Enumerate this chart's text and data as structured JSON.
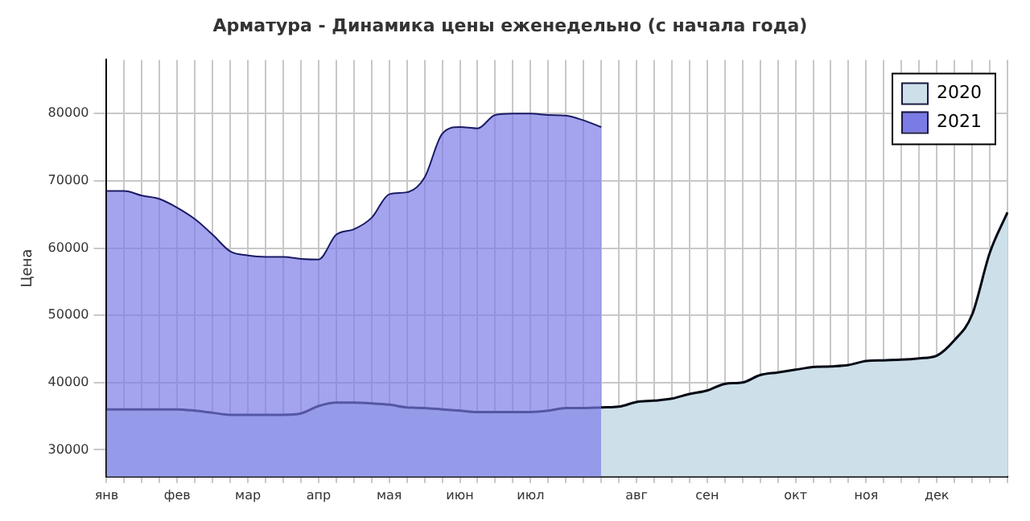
{
  "chart_data": {
    "type": "area",
    "title": "Арматура - Динамика цены еженедельно (с начала года)",
    "ylabel": "Цена",
    "categories": [
      "янв",
      null,
      null,
      null,
      "фев",
      null,
      null,
      null,
      "мар",
      null,
      null,
      null,
      "апр",
      null,
      null,
      null,
      "мая",
      null,
      null,
      null,
      "июн",
      null,
      null,
      null,
      "июл",
      null,
      null,
      null,
      null,
      null,
      "авг",
      null,
      null,
      null,
      "сен",
      null,
      null,
      null,
      null,
      "окт",
      null,
      null,
      null,
      "ноя",
      null,
      null,
      null,
      "дек",
      null,
      null,
      null,
      null
    ],
    "series": [
      {
        "name": "2020",
        "color": "#cde0ea",
        "values": [
          36000,
          36000,
          36000,
          36000,
          36000,
          35800,
          35500,
          35200,
          35200,
          35200,
          35200,
          35400,
          36500,
          37000,
          37000,
          36900,
          36700,
          36300,
          36200,
          36000,
          35800,
          35600,
          35600,
          35600,
          35600,
          35800,
          36200,
          36200,
          36300,
          36400,
          37100,
          37300,
          37600,
          38300,
          38800,
          39800,
          40000,
          41100,
          41500,
          41900,
          42300,
          42400,
          42600,
          43200,
          43300,
          43400,
          43600,
          44000,
          46300,
          50100,
          59300,
          65300
        ]
      },
      {
        "name": "2021",
        "color": "#7b7be6",
        "values": [
          68500,
          68500,
          67800,
          67300,
          66000,
          64300,
          62000,
          59500,
          58900,
          58700,
          58700,
          58400,
          58300,
          62000,
          62800,
          64500,
          68000,
          68300,
          70500,
          77000,
          78000,
          77800,
          79800,
          80000,
          80000,
          79800,
          79700,
          79000,
          78000,
          null,
          null,
          null,
          null,
          null,
          null,
          null,
          null,
          null,
          null,
          null,
          null,
          null,
          null,
          null,
          null,
          null,
          null,
          null,
          null,
          null,
          null,
          null
        ]
      }
    ],
    "ylim": [
      26000,
      88000
    ],
    "yticks": [
      30000,
      40000,
      50000,
      60000,
      70000,
      80000
    ],
    "grid": true,
    "legend": "top right"
  }
}
